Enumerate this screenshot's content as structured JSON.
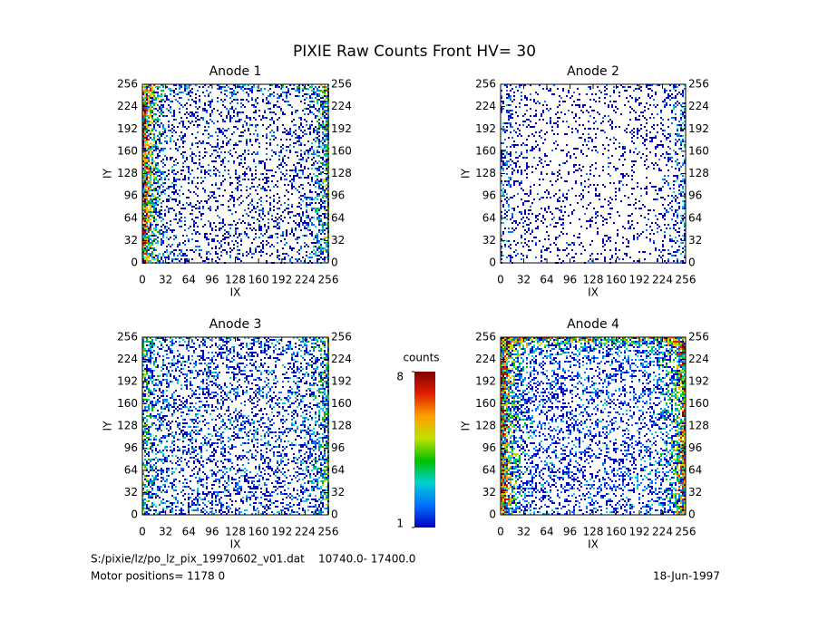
{
  "title": "PIXIE Raw Counts Front HV= 30",
  "chart_data": [
    {
      "type": "heatmap",
      "title": "Anode 1",
      "xlabel": "IX",
      "ylabel": "IY",
      "xlim": [
        0,
        256
      ],
      "ylim": [
        0,
        256
      ],
      "xticks": [
        0,
        32,
        64,
        96,
        128,
        160,
        192,
        224,
        256
      ],
      "yticks": [
        0,
        32,
        64,
        96,
        128,
        160,
        192,
        224,
        256
      ]
    },
    {
      "type": "heatmap",
      "title": "Anode 2",
      "xlabel": "IX",
      "ylabel": "IY",
      "xlim": [
        0,
        256
      ],
      "ylim": [
        0,
        256
      ],
      "xticks": [
        0,
        32,
        64,
        96,
        128,
        160,
        192,
        224,
        256
      ],
      "yticks": [
        0,
        32,
        64,
        96,
        128,
        160,
        192,
        224,
        256
      ]
    },
    {
      "type": "heatmap",
      "title": "Anode 3",
      "xlabel": "IX",
      "ylabel": "IY",
      "xlim": [
        0,
        256
      ],
      "ylim": [
        0,
        256
      ],
      "xticks": [
        0,
        32,
        64,
        96,
        128,
        160,
        192,
        224,
        256
      ],
      "yticks": [
        0,
        32,
        64,
        96,
        128,
        160,
        192,
        224,
        256
      ]
    },
    {
      "type": "heatmap",
      "title": "Anode 4",
      "xlabel": "IX",
      "ylabel": "IY",
      "xlim": [
        0,
        256
      ],
      "ylim": [
        0,
        256
      ],
      "xticks": [
        0,
        32,
        64,
        96,
        128,
        160,
        192,
        224,
        256
      ],
      "yticks": [
        0,
        32,
        64,
        96,
        128,
        160,
        192,
        224,
        256
      ]
    }
  ],
  "colorbar": {
    "label": "counts",
    "lim": [
      1,
      8
    ],
    "ticks": [
      1,
      8
    ],
    "colors": [
      "#0000c0",
      "#0070ff",
      "#00d0d0",
      "#00c000",
      "#c0e000",
      "#ffa000",
      "#e02000",
      "#800000"
    ]
  },
  "footer": {
    "file": "S:/pixie/lz/po_lz_pix_19970602_v01.dat    10740.0- 17400.0",
    "motor": "Motor positions= 1178 0",
    "date": "18-Jun-1997"
  }
}
